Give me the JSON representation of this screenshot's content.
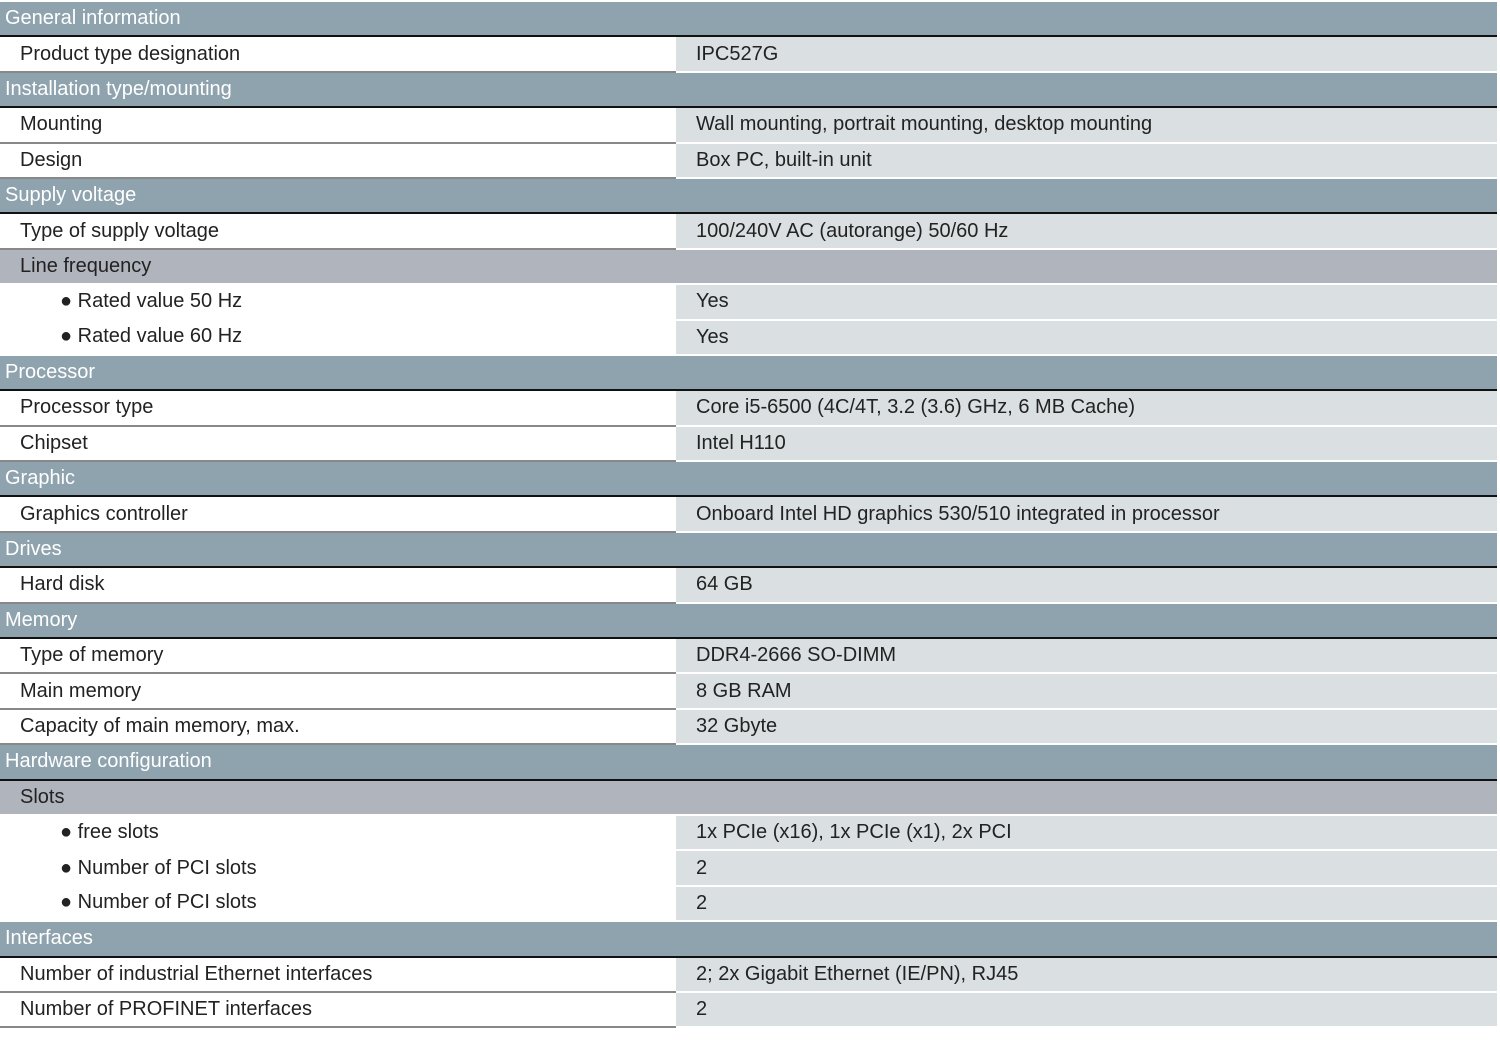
{
  "sections": [
    {
      "title": "General information",
      "rows": [
        {
          "type": "row",
          "label": "Product type designation",
          "value": "IPC527G"
        }
      ]
    },
    {
      "title": "Installation type/mounting",
      "rows": [
        {
          "type": "row",
          "label": "Mounting",
          "value": "Wall mounting, portrait mounting, desktop mounting"
        },
        {
          "type": "row",
          "label": "Design",
          "value": "Box PC, built-in unit"
        }
      ]
    },
    {
      "title": "Supply voltage",
      "rows": [
        {
          "type": "row",
          "label": "Type of supply voltage",
          "value": "100/240V AC (autorange) 50/60 Hz"
        },
        {
          "type": "sub",
          "label": "Line frequency"
        },
        {
          "type": "bullet",
          "label": "● Rated value 50 Hz",
          "value": "Yes"
        },
        {
          "type": "bullet",
          "label": "● Rated value 60 Hz",
          "value": "Yes"
        }
      ]
    },
    {
      "title": "Processor",
      "rows": [
        {
          "type": "row",
          "label": "Processor type",
          "value": "Core i5-6500 (4C/4T, 3.2 (3.6) GHz, 6 MB Cache)"
        },
        {
          "type": "row",
          "label": "Chipset",
          "value": "Intel H110"
        }
      ]
    },
    {
      "title": "Graphic",
      "rows": [
        {
          "type": "row",
          "label": "Graphics controller",
          "value": "Onboard Intel HD graphics 530/510 integrated in processor"
        }
      ]
    },
    {
      "title": "Drives",
      "rows": [
        {
          "type": "row",
          "label": "Hard disk",
          "value": "64 GB"
        }
      ]
    },
    {
      "title": "Memory",
      "rows": [
        {
          "type": "row",
          "label": "Type of memory",
          "value": "DDR4-2666 SO-DIMM"
        },
        {
          "type": "row",
          "label": "Main memory",
          "value": "8 GB RAM"
        },
        {
          "type": "row",
          "label": "Capacity of main memory, max.",
          "value": "32 Gbyte"
        }
      ]
    },
    {
      "title": "Hardware configuration",
      "rows": [
        {
          "type": "sub",
          "label": "Slots"
        },
        {
          "type": "bullet",
          "label": "● free slots",
          "value": "1x PCIe (x16), 1x PCIe (x1), 2x PCI"
        },
        {
          "type": "bullet",
          "label": "● Number of PCI slots",
          "value": "2"
        },
        {
          "type": "bullet",
          "label": "● Number of PCI slots",
          "value": "2"
        }
      ]
    },
    {
      "title": "Interfaces",
      "rows": [
        {
          "type": "row",
          "label": "Number of industrial Ethernet interfaces",
          "value": "2; 2x Gigabit Ethernet (IE/PN), RJ45"
        },
        {
          "type": "row",
          "label": "Number of PROFINET interfaces",
          "value": "2"
        }
      ]
    }
  ]
}
